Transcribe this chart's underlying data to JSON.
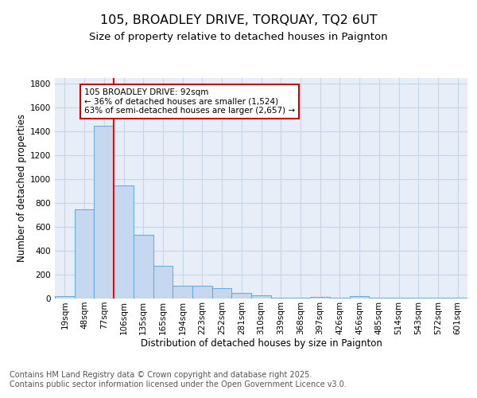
{
  "title1": "105, BROADLEY DRIVE, TORQUAY, TQ2 6UT",
  "title2": "Size of property relative to detached houses in Paignton",
  "xlabel": "Distribution of detached houses by size in Paignton",
  "ylabel": "Number of detached properties",
  "categories": [
    "19sqm",
    "48sqm",
    "77sqm",
    "106sqm",
    "135sqm",
    "165sqm",
    "194sqm",
    "223sqm",
    "252sqm",
    "281sqm",
    "310sqm",
    "339sqm",
    "368sqm",
    "397sqm",
    "426sqm",
    "456sqm",
    "485sqm",
    "514sqm",
    "543sqm",
    "572sqm",
    "601sqm"
  ],
  "values": [
    20,
    750,
    1450,
    950,
    535,
    275,
    110,
    110,
    90,
    45,
    25,
    5,
    5,
    15,
    5,
    20,
    5,
    5,
    5,
    5,
    5
  ],
  "bar_color": "#c5d8f0",
  "bar_edge_color": "#6aacde",
  "grid_color": "#c8d4e8",
  "background_color": "#e8eef8",
  "red_line_x": 2.5,
  "annotation_text": "105 BROADLEY DRIVE: 92sqm\n← 36% of detached houses are smaller (1,524)\n63% of semi-detached houses are larger (2,657) →",
  "annotation_box_color": "#ffffff",
  "annotation_edge_color": "#cc0000",
  "ylim": [
    0,
    1850
  ],
  "yticks": [
    0,
    200,
    400,
    600,
    800,
    1000,
    1200,
    1400,
    1600,
    1800
  ],
  "footer_line1": "Contains HM Land Registry data © Crown copyright and database right 2025.",
  "footer_line2": "Contains public sector information licensed under the Open Government Licence v3.0.",
  "title_fontsize": 11.5,
  "subtitle_fontsize": 9.5,
  "axis_label_fontsize": 8.5,
  "tick_fontsize": 7.5,
  "annotation_fontsize": 7.5,
  "footer_fontsize": 7.0
}
